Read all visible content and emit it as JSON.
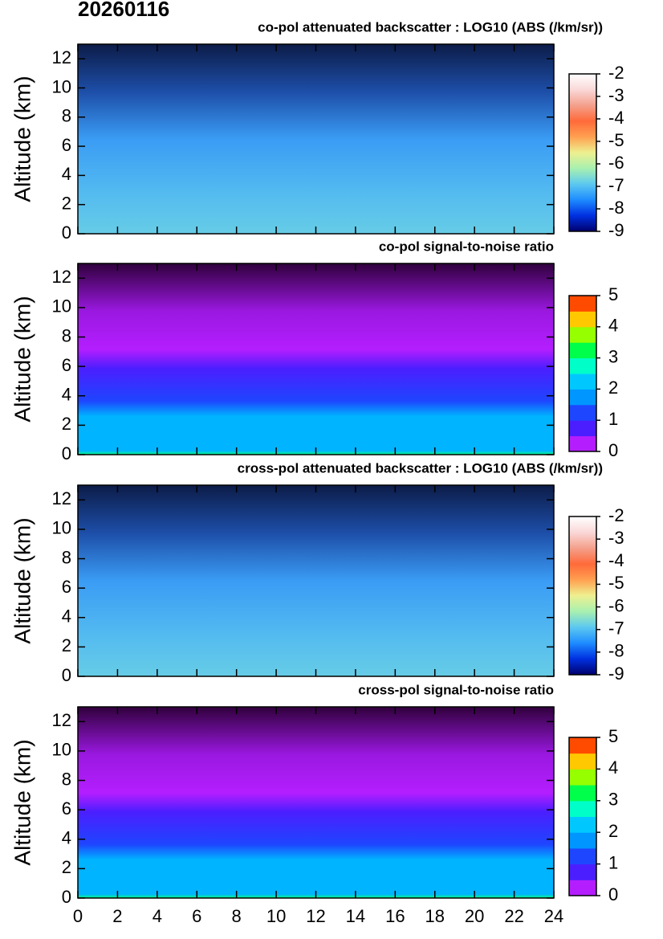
{
  "title": "20260116",
  "chart_data": [
    {
      "type": "heatmap",
      "title": "co-pol attenuated backscatter : LOG10 (ABS (/km/sr))",
      "y_label": "Altitude (km)",
      "xlim": [
        0,
        24
      ],
      "xticks": [
        0,
        2,
        4,
        6,
        8,
        10,
        12,
        14,
        16,
        18,
        20,
        22,
        24
      ],
      "show_xtick_labels": false,
      "ylim": [
        0,
        13
      ],
      "yticks": [
        0,
        2,
        4,
        6,
        8,
        10,
        12
      ],
      "colorbar": {
        "lim": [
          -9,
          -2
        ],
        "ticks": [
          -9,
          -8,
          -7,
          -6,
          -5,
          -4,
          -3,
          -2
        ],
        "continuous": true,
        "colors": [
          "#00006e",
          "#0030e0",
          "#1e8cff",
          "#5cc8f0",
          "#a8f0b0",
          "#eef090",
          "#ffa050",
          "#ff6a3a",
          "#f4a08c",
          "#fad8d8",
          "#ffffff"
        ]
      }
    },
    {
      "type": "heatmap",
      "title": "co-pol signal-to-noise ratio",
      "y_label": "Altitude (km)",
      "xlim": [
        0,
        24
      ],
      "xticks": [
        0,
        2,
        4,
        6,
        8,
        10,
        12,
        14,
        16,
        18,
        20,
        22,
        24
      ],
      "show_xtick_labels": false,
      "ylim": [
        0,
        13
      ],
      "yticks": [
        0,
        2,
        4,
        6,
        8,
        10,
        12
      ],
      "colorbar": {
        "lim": [
          0,
          5
        ],
        "ticks": [
          0,
          1,
          2,
          3,
          4,
          5
        ],
        "continuous": false,
        "colors": [
          "#b41eff",
          "#4b1eff",
          "#1e46ff",
          "#0096ff",
          "#00c8ff",
          "#00ffc8",
          "#00ff4b",
          "#96ff00",
          "#ffc800",
          "#ff4b00"
        ]
      }
    },
    {
      "type": "heatmap",
      "title": "cross-pol attenuated backscatter : LOG10 (ABS (/km/sr))",
      "y_label": "Altitude (km)",
      "xlim": [
        0,
        24
      ],
      "xticks": [
        0,
        2,
        4,
        6,
        8,
        10,
        12,
        14,
        16,
        18,
        20,
        22,
        24
      ],
      "show_xtick_labels": false,
      "ylim": [
        0,
        13
      ],
      "yticks": [
        0,
        2,
        4,
        6,
        8,
        10,
        12
      ],
      "colorbar": {
        "lim": [
          -9,
          -2
        ],
        "ticks": [
          -9,
          -8,
          -7,
          -6,
          -5,
          -4,
          -3,
          -2
        ],
        "continuous": true,
        "colors": [
          "#00006e",
          "#0030e0",
          "#1e8cff",
          "#5cc8f0",
          "#a8f0b0",
          "#eef090",
          "#ffa050",
          "#ff6a3a",
          "#f4a08c",
          "#fad8d8",
          "#ffffff"
        ]
      }
    },
    {
      "type": "heatmap",
      "title": "cross-pol signal-to-noise ratio",
      "y_label": "Altitude (km)",
      "xlim": [
        0,
        24
      ],
      "xticks": [
        0,
        2,
        4,
        6,
        8,
        10,
        12,
        14,
        16,
        18,
        20,
        22,
        24
      ],
      "show_xtick_labels": true,
      "ylim": [
        0,
        13
      ],
      "yticks": [
        0,
        2,
        4,
        6,
        8,
        10,
        12
      ],
      "colorbar": {
        "lim": [
          0,
          5
        ],
        "ticks": [
          0,
          1,
          2,
          3,
          4,
          5
        ],
        "continuous": false,
        "colors": [
          "#b41eff",
          "#4b1eff",
          "#1e46ff",
          "#0096ff",
          "#00c8ff",
          "#00ffc8",
          "#00ff4b",
          "#96ff00",
          "#ffc800",
          "#ff4b00"
        ]
      }
    }
  ]
}
